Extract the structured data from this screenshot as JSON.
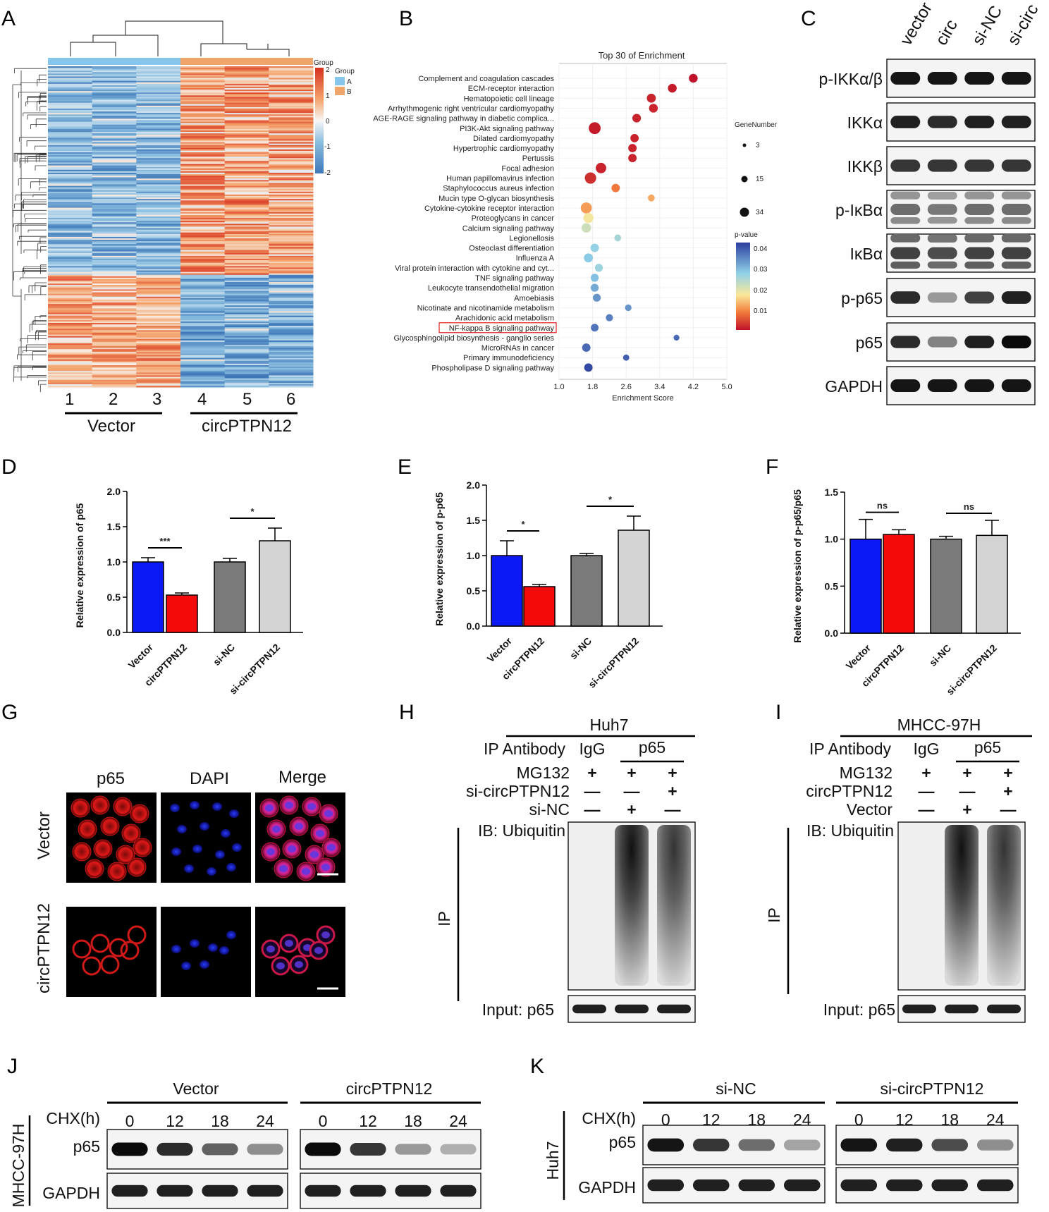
{
  "panels": {
    "A": "A",
    "B": "B",
    "C": "C",
    "D": "D",
    "E": "E",
    "F": "F",
    "G": "G",
    "H": "H",
    "I": "I",
    "J": "J",
    "K": "K"
  },
  "heatmap": {
    "legend_group_title": "Group",
    "legend_group_title2": "Group",
    "legend_group_a": "A",
    "legend_group_b": "B",
    "scale_ticks": [
      "2",
      "1",
      "0",
      "-1",
      "-2"
    ],
    "columns": [
      "1",
      "2",
      "3",
      "4",
      "5",
      "6"
    ],
    "group_vector": "Vector",
    "group_circ": "circPTPN12",
    "colors": {
      "group_a": "#87c6ec",
      "group_b": "#f0a66a",
      "high": "#d7301f",
      "mid": "#f7f7f7",
      "low": "#3f78b9"
    }
  },
  "enrichment": {
    "title": "Top 30 of  Enrichment",
    "xlabel": "Enrichment Score",
    "xticks": [
      "1.0",
      "1.8",
      "2.6",
      "3.4",
      "4.2",
      "5.0"
    ],
    "size_legend_title": "GeneNumber",
    "size_legend": [
      "3",
      "15",
      "34"
    ],
    "color_legend_title": "p-value",
    "color_legend": [
      "0.04",
      "0.03",
      "0.02",
      "0.01"
    ],
    "highlight": "NF-kappa B signaling pathway",
    "pathways": [
      {
        "name": "Complement and coagulation cascades",
        "score": 4.2,
        "p": 0.001,
        "n": 14
      },
      {
        "name": "ECM-receptor interaction",
        "score": 3.7,
        "p": 0.002,
        "n": 14
      },
      {
        "name": "Hematopoietic cell lineage",
        "score": 3.2,
        "p": 0.003,
        "n": 15
      },
      {
        "name": "Arrhythmogenic right ventricular cardiomyopathy",
        "score": 3.25,
        "p": 0.003,
        "n": 14
      },
      {
        "name": "AGE-RAGE signaling pathway in diabetic complica...",
        "score": 2.85,
        "p": 0.003,
        "n": 13
      },
      {
        "name": "PI3K-Akt signaling pathway",
        "score": 1.85,
        "p": 0.002,
        "n": 34
      },
      {
        "name": "Dilated cardiomyopathy",
        "score": 2.8,
        "p": 0.003,
        "n": 12
      },
      {
        "name": "Hypertrophic cardiomyopathy",
        "score": 2.75,
        "p": 0.003,
        "n": 12
      },
      {
        "name": "Pertussis",
        "score": 2.75,
        "p": 0.003,
        "n": 12
      },
      {
        "name": "Focal adhesion",
        "score": 2.0,
        "p": 0.003,
        "n": 24
      },
      {
        "name": "Human papillomavirus infection",
        "score": 1.75,
        "p": 0.004,
        "n": 30
      },
      {
        "name": "Staphylococcus aureus infection",
        "score": 2.35,
        "p": 0.012,
        "n": 12
      },
      {
        "name": "Mucin type O-glycan biosynthesis",
        "score": 3.2,
        "p": 0.016,
        "n": 6
      },
      {
        "name": "Cytokine-cytokine receptor interaction",
        "score": 1.65,
        "p": 0.015,
        "n": 28
      },
      {
        "name": "Proteoglycans in cancer",
        "score": 1.7,
        "p": 0.022,
        "n": 22
      },
      {
        "name": "Calcium signaling pathway",
        "score": 1.65,
        "p": 0.026,
        "n": 18
      },
      {
        "name": "Legionellosis",
        "score": 2.4,
        "p": 0.03,
        "n": 6
      },
      {
        "name": "Osteoclast differentiation",
        "score": 1.85,
        "p": 0.032,
        "n": 12
      },
      {
        "name": "Influenza A",
        "score": 1.7,
        "p": 0.033,
        "n": 15
      },
      {
        "name": "Viral protein interaction with cytokine and cyt...",
        "score": 1.95,
        "p": 0.031,
        "n": 10
      },
      {
        "name": "TNF signaling pathway",
        "score": 1.85,
        "p": 0.034,
        "n": 10
      },
      {
        "name": "Leukocyte transendothelial migration",
        "score": 1.85,
        "p": 0.036,
        "n": 10
      },
      {
        "name": "Amoebiasis",
        "score": 1.9,
        "p": 0.038,
        "n": 10
      },
      {
        "name": "Nicotinate and nicotinamide metabolism",
        "score": 2.65,
        "p": 0.038,
        "n": 5
      },
      {
        "name": "Arachidonic acid metabolism",
        "score": 2.2,
        "p": 0.04,
        "n": 7
      },
      {
        "name": "NF-kappa B signaling pathway",
        "score": 1.85,
        "p": 0.041,
        "n": 9
      },
      {
        "name": "Glycosphingolipid biosynthesis - ganglio series",
        "score": 3.8,
        "p": 0.042,
        "n": 3
      },
      {
        "name": "MicroRNAs in cancer",
        "score": 1.65,
        "p": 0.042,
        "n": 12
      },
      {
        "name": "Primary immunodeficiency",
        "score": 2.6,
        "p": 0.043,
        "n": 4
      },
      {
        "name": "Phospholipase D signaling pathway",
        "score": 1.7,
        "p": 0.045,
        "n": 12
      }
    ]
  },
  "western_c": {
    "lanes": [
      "vector",
      "circ",
      "si-NC",
      "si-circ"
    ],
    "rows": [
      "p-IKKα/β",
      "IKKα",
      "IKKβ",
      "p-IκBα",
      "IκBα",
      "p-p65",
      "p65",
      "GAPDH"
    ]
  },
  "chart_data": [
    {
      "type": "bar",
      "panel": "D",
      "categories": [
        "Vector",
        "circPTPN12",
        "si-NC",
        "si-circPTPN12"
      ],
      "values": [
        1.0,
        0.53,
        1.0,
        1.3
      ],
      "errors": [
        0.06,
        0.03,
        0.05,
        0.18
      ],
      "ylabel": "Relative expression of p65",
      "ylim": [
        0,
        2.0
      ],
      "yticks": [
        "0.0",
        "0.5",
        "1.0",
        "1.5",
        "2.0"
      ],
      "significance": [
        "***",
        "*"
      ],
      "colors": [
        "#0a19f5",
        "#f50a0a",
        "#7a7a7a",
        "#d4d4d4"
      ]
    },
    {
      "type": "bar",
      "panel": "E",
      "categories": [
        "Vector",
        "circPTPN12",
        "si-NC",
        "si-circPTPN12"
      ],
      "values": [
        1.0,
        0.56,
        1.0,
        1.36
      ],
      "errors": [
        0.21,
        0.03,
        0.03,
        0.2
      ],
      "ylabel": "Relative expression of p-p65",
      "ylim": [
        0,
        2.0
      ],
      "yticks": [
        "0.0",
        "0.5",
        "1.0",
        "1.5",
        "2.0"
      ],
      "significance": [
        "*",
        "*"
      ],
      "colors": [
        "#0a19f5",
        "#f50a0a",
        "#7a7a7a",
        "#d4d4d4"
      ]
    },
    {
      "type": "bar",
      "panel": "F",
      "categories": [
        "Vector",
        "circPTPN12",
        "si-NC",
        "si-circPTPN12"
      ],
      "values": [
        1.0,
        1.05,
        1.0,
        1.04
      ],
      "errors": [
        0.21,
        0.05,
        0.03,
        0.16
      ],
      "ylabel": "Relative expression of p-p65/p65",
      "ylim": [
        0,
        1.5
      ],
      "yticks": [
        "0.0",
        "0.5",
        "1.0",
        "1.5"
      ],
      "significance": [
        "ns",
        "ns"
      ],
      "colors": [
        "#0a19f5",
        "#f50a0a",
        "#7a7a7a",
        "#d4d4d4"
      ]
    }
  ],
  "if_panel": {
    "cols": [
      "p65",
      "DAPI",
      "Merge"
    ],
    "rows": [
      "Vector",
      "circPTPN12"
    ]
  },
  "ip_h": {
    "cell": "Huh7",
    "ip_antibody": "IP Antibody",
    "igg": "IgG",
    "p65": "p65",
    "rows": [
      {
        "label": "MG132",
        "vals": [
          "+",
          "+",
          "+"
        ]
      },
      {
        "label": "si-circPTPN12",
        "vals": [
          "—",
          "—",
          "+"
        ]
      },
      {
        "label": "si-NC",
        "vals": [
          "—",
          "+",
          "—"
        ]
      }
    ],
    "ib": "IB: Ubiquitin",
    "ip": "IP",
    "input": "Input: p65"
  },
  "ip_i": {
    "cell": "MHCC-97H",
    "ip_antibody": "IP Antibody",
    "igg": "IgG",
    "p65": "p65",
    "rows": [
      {
        "label": "MG132",
        "vals": [
          "+",
          "+",
          "+"
        ]
      },
      {
        "label": "circPTPN12",
        "vals": [
          "—",
          "—",
          "+"
        ]
      },
      {
        "label": "Vector",
        "vals": [
          "—",
          "+",
          "—"
        ]
      }
    ],
    "ib": "IB: Ubiquitin",
    "ip": "IP",
    "input": "Input: p65"
  },
  "chx_j": {
    "cell": "MHCC-97H",
    "group1": "Vector",
    "group2": "circPTPN12",
    "chx": "CHX(h)",
    "times": [
      "0",
      "12",
      "18",
      "24"
    ],
    "rows": [
      "p65",
      "GAPDH"
    ]
  },
  "chx_k": {
    "cell": "Huh7",
    "group1": "si-NC",
    "group2": "si-circPTPN12",
    "chx": "CHX(h)",
    "times": [
      "0",
      "12",
      "18",
      "24"
    ],
    "rows": [
      "p65",
      "GAPDH"
    ]
  }
}
